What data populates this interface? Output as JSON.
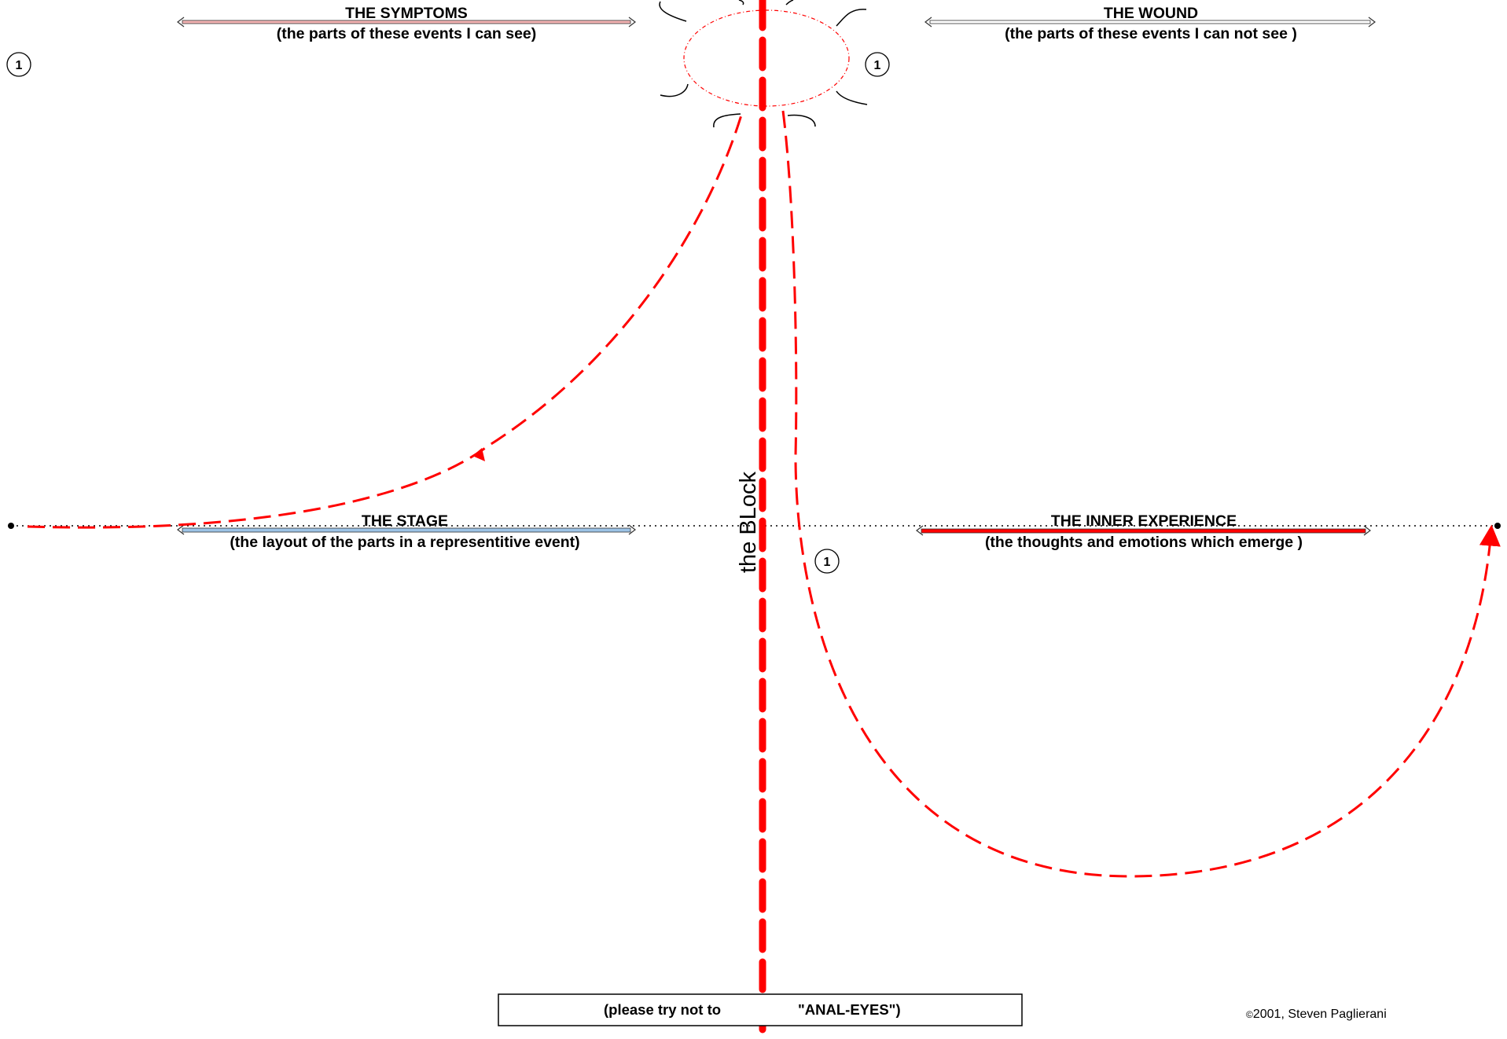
{
  "quadrants": {
    "symptoms": {
      "title": "THE SYMPTOMS",
      "subtitle": "(the parts of these events I can see)",
      "color": "#f4b4b4"
    },
    "wound": {
      "title": "THE WOUND",
      "subtitle": "(the parts of these events I can not see )",
      "color": "#ffffff"
    },
    "stage": {
      "title": "THE STAGE",
      "subtitle": "(the layout of the parts in a representitive event)",
      "color": "#9cc3e6"
    },
    "inner": {
      "title": "THE INNER EXPERIENCE",
      "subtitle": "(the thoughts and emotions which emerge )",
      "color": "#ff0000"
    }
  },
  "markers": [
    "1",
    "1",
    "1"
  ],
  "block_label": "the BLock",
  "bottom_note": {
    "part1": "(please try not to",
    "part2": "\"ANAL-EYES\")"
  },
  "copyright": {
    "symbol": "©",
    "text": "2001,  Steven Paglierani"
  },
  "colors": {
    "accent": "#ff0000",
    "line": "#000000"
  }
}
